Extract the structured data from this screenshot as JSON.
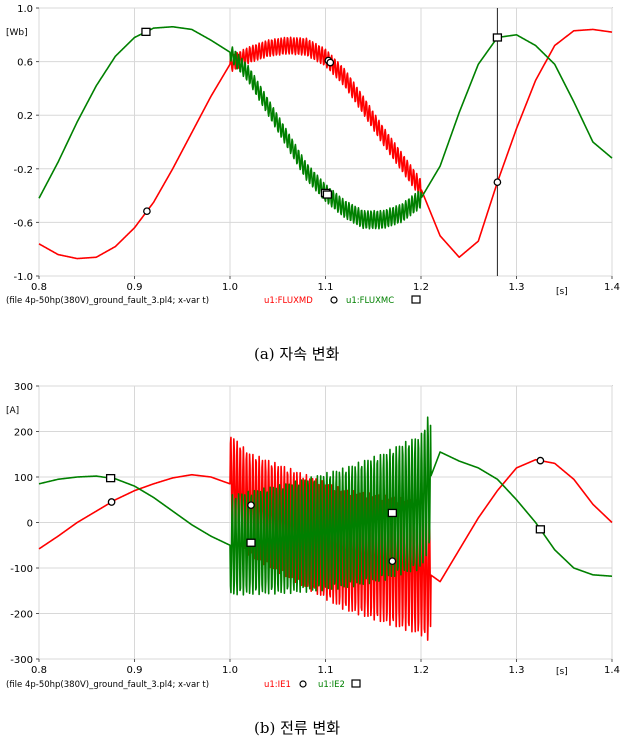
{
  "chart_data": [
    {
      "type": "line",
      "title": "",
      "xlabel": "",
      "x_unit": "[s]",
      "ylabel": "",
      "y_unit": "[Wb]",
      "xlim": [
        0.8,
        1.4
      ],
      "ylim": [
        -1.0,
        1.0
      ],
      "x_ticks": [
        "0.8",
        "0.9",
        "1.0",
        "1.1",
        "1.2",
        "1.3",
        "1.4"
      ],
      "y_ticks": [
        "1.0",
        "0.6",
        "0.2",
        "-0.2",
        "-0.6",
        "-1.0"
      ],
      "cursor_x": 1.28,
      "footer_file": "(file 4p-50hp(380V)_ground_fault_3.pl4; x-var t)",
      "series": [
        {
          "name": "u1:FLUXMD",
          "color": "#ff0000",
          "marker": "circle",
          "x": [
            0.8,
            0.82,
            0.84,
            0.86,
            0.88,
            0.9,
            0.92,
            0.94,
            0.96,
            0.98,
            1.0,
            1.02,
            1.04,
            1.06,
            1.08,
            1.1,
            1.12,
            1.14,
            1.16,
            1.18,
            1.2,
            1.22,
            1.24,
            1.26,
            1.28,
            1.3,
            1.32,
            1.34,
            1.36,
            1.38,
            1.4
          ],
          "y": [
            -0.76,
            -0.84,
            -0.87,
            -0.86,
            -0.78,
            -0.64,
            -0.45,
            -0.2,
            0.07,
            0.34,
            0.58,
            0.65,
            0.7,
            0.72,
            0.71,
            0.63,
            0.48,
            0.27,
            0.05,
            -0.15,
            -0.35,
            -0.7,
            -0.86,
            -0.74,
            -0.3,
            0.1,
            0.46,
            0.72,
            0.83,
            0.84,
            0.82
          ]
        },
        {
          "name": "u1:FLUXMC",
          "color": "#008000",
          "marker": "square",
          "x": [
            0.8,
            0.82,
            0.84,
            0.86,
            0.88,
            0.9,
            0.92,
            0.94,
            0.96,
            0.98,
            1.0,
            1.02,
            1.04,
            1.06,
            1.08,
            1.1,
            1.12,
            1.14,
            1.16,
            1.18,
            1.2,
            1.22,
            1.24,
            1.26,
            1.28,
            1.3,
            1.32,
            1.34,
            1.36,
            1.38,
            1.4
          ],
          "y": [
            -0.42,
            -0.15,
            0.15,
            0.42,
            0.64,
            0.78,
            0.85,
            0.86,
            0.84,
            0.76,
            0.67,
            0.5,
            0.26,
            0.02,
            -0.22,
            -0.38,
            -0.5,
            -0.58,
            -0.58,
            -0.53,
            -0.42,
            -0.18,
            0.22,
            0.58,
            0.78,
            0.8,
            0.72,
            0.58,
            0.3,
            0.0,
            -0.12
          ]
        }
      ]
    },
    {
      "type": "line",
      "title": "",
      "xlabel": "",
      "x_unit": "[s]",
      "ylabel": "",
      "y_unit": "[A]",
      "xlim": [
        0.8,
        1.4
      ],
      "ylim": [
        -300,
        300
      ],
      "x_ticks": [
        "0.8",
        "0.9",
        "1.0",
        "1.1",
        "1.2",
        "1.3",
        "1.4"
      ],
      "y_ticks": [
        "300",
        "200",
        "100",
        "0",
        "-100",
        "-200",
        "-300"
      ],
      "footer_file": "(file 4p-50hp(380V)_ground_fault_3.pl4; x-var t)",
      "series": [
        {
          "name": "u1:IE1",
          "color": "#ff0000",
          "marker": "circle",
          "x": [
            0.8,
            0.82,
            0.84,
            0.86,
            0.88,
            0.9,
            0.92,
            0.94,
            0.96,
            0.98,
            1.0,
            1.02,
            1.04,
            1.06,
            1.08,
            1.1,
            1.12,
            1.14,
            1.16,
            1.18,
            1.2,
            1.22,
            1.24,
            1.26,
            1.28,
            1.3,
            1.32,
            1.34,
            1.36,
            1.38,
            1.4
          ],
          "y": [
            -58,
            -30,
            0,
            25,
            50,
            70,
            85,
            98,
            105,
            100,
            85,
            40,
            20,
            0,
            -20,
            -40,
            -60,
            -70,
            -80,
            -90,
            -100,
            -130,
            -60,
            10,
            70,
            120,
            138,
            130,
            95,
            40,
            0
          ]
        },
        {
          "name": "u1:IE2",
          "color": "#008000",
          "marker": "square",
          "x": [
            0.8,
            0.82,
            0.84,
            0.86,
            0.88,
            0.9,
            0.92,
            0.94,
            0.96,
            0.98,
            1.0,
            1.02,
            1.04,
            1.06,
            1.08,
            1.1,
            1.12,
            1.14,
            1.16,
            1.18,
            1.2,
            1.22,
            1.24,
            1.26,
            1.28,
            1.3,
            1.32,
            1.34,
            1.36,
            1.38,
            1.4
          ],
          "y": [
            85,
            95,
            100,
            102,
            96,
            80,
            55,
            25,
            -5,
            -30,
            -50,
            -45,
            -40,
            -35,
            -28,
            -20,
            -12,
            0,
            12,
            30,
            45,
            155,
            135,
            120,
            95,
            50,
            0,
            -60,
            -100,
            -115,
            -118
          ]
        }
      ]
    }
  ],
  "captions": [
    "(a) 자속 변화",
    "(b) 전류 변화"
  ]
}
